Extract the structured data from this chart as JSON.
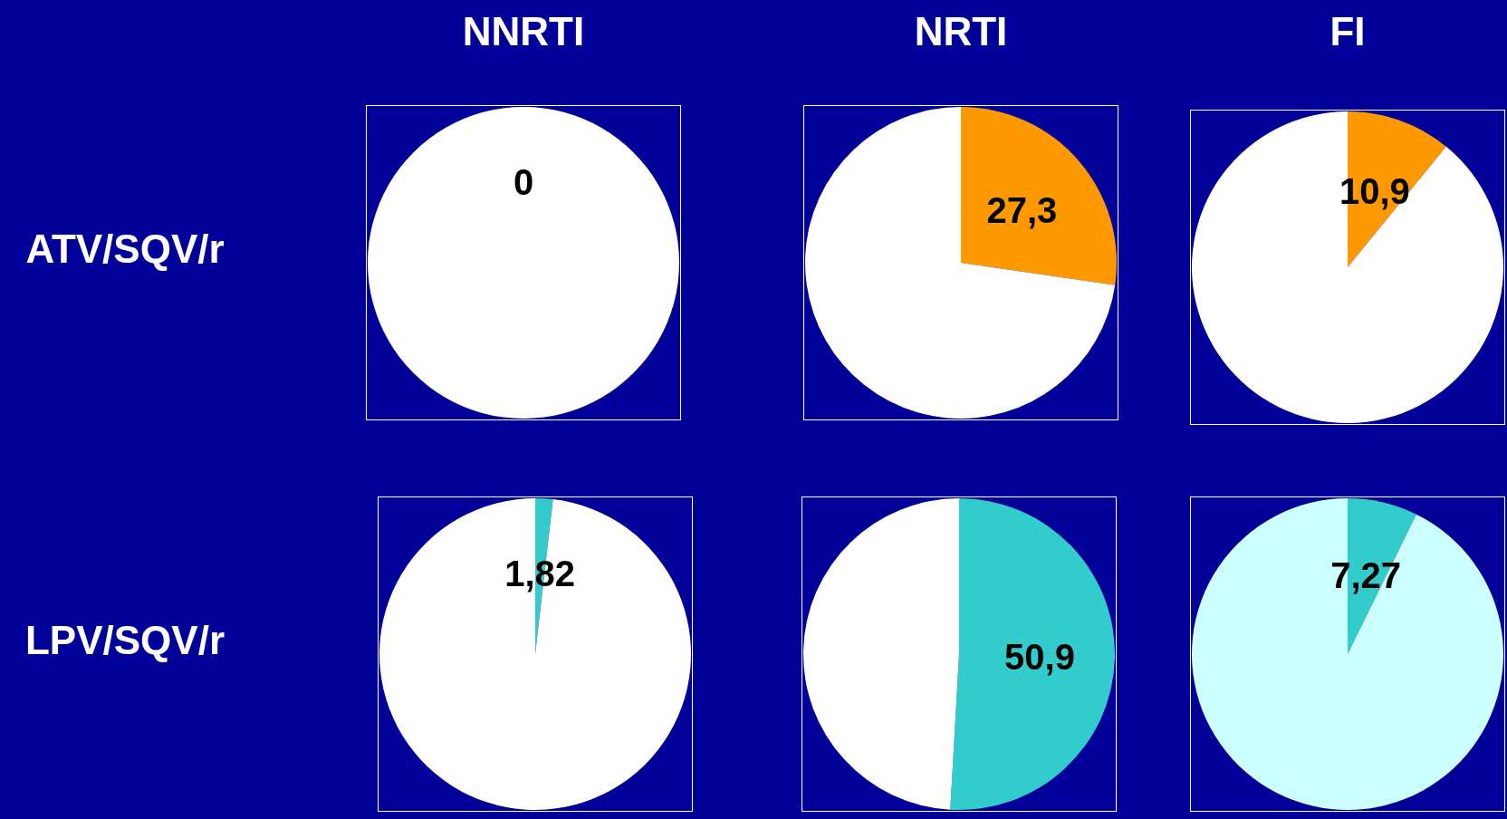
{
  "chart_data": [
    {
      "type": "pie",
      "title": "NNRTI",
      "ylabel": "ATV/SQV/r",
      "categories": [
        null,
        null
      ],
      "values": [
        0,
        100
      ],
      "colors": [
        "#ff9900",
        "#ffffff"
      ],
      "value_labels": [
        "0",
        null
      ]
    },
    {
      "type": "pie",
      "title": "NRTI",
      "categories": [
        null,
        null
      ],
      "values": [
        27.3,
        72.7
      ],
      "colors": [
        "#ff9900",
        "#ffffff"
      ],
      "value_labels": [
        "27,3",
        null
      ]
    },
    {
      "type": "pie",
      "title": "FI",
      "categories": [
        null,
        null
      ],
      "values": [
        10.9,
        89.1
      ],
      "colors": [
        "#ff9900",
        "#ffffff"
      ],
      "value_labels": [
        "10,9",
        null
      ]
    },
    {
      "type": "pie",
      "ylabel": "LPV/SQV/r",
      "categories": [
        null,
        null
      ],
      "values": [
        1.82,
        98.18
      ],
      "colors": [
        "#33cccc",
        "#ffffff"
      ],
      "value_labels": [
        "1,82",
        null
      ]
    },
    {
      "type": "pie",
      "categories": [
        null,
        null
      ],
      "values": [
        50.9,
        49.1
      ],
      "colors": [
        "#33cccc",
        "#ffffff"
      ],
      "value_labels": [
        "50,9",
        null
      ]
    },
    {
      "type": "pie",
      "categories": [
        null,
        null
      ],
      "values": [
        7.27,
        92.73
      ],
      "colors": [
        "#33cccc",
        "#ccffff"
      ],
      "value_labels": [
        "7,27",
        null
      ]
    }
  ]
}
